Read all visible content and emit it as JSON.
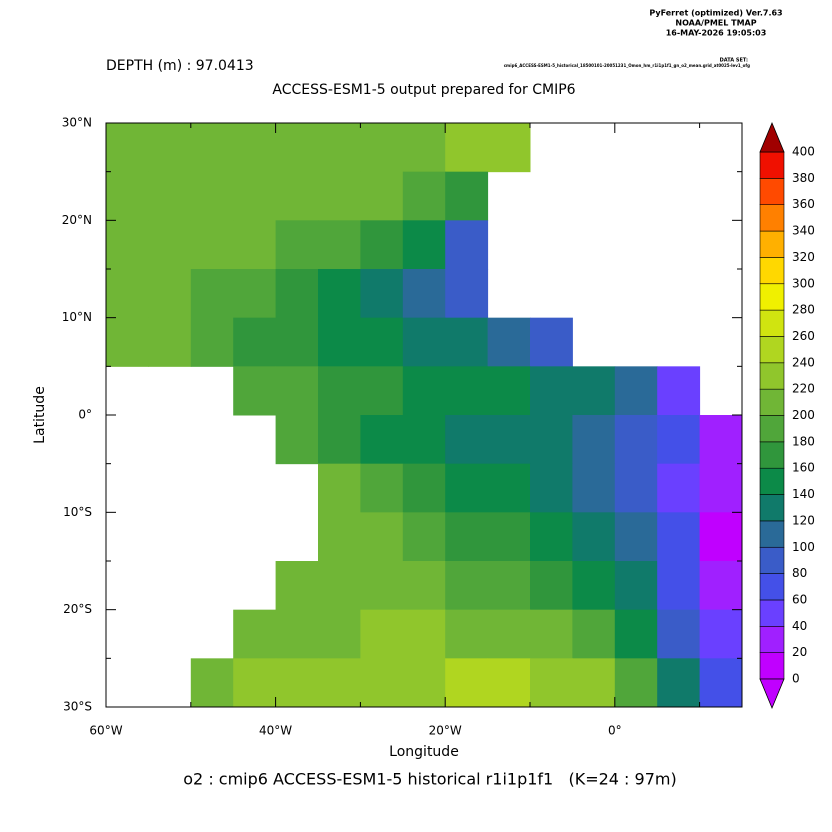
{
  "header": {
    "software": "PyFerret (optimized) Ver.7.63",
    "org": "NOAA/PMEL TMAP",
    "timestamp": "16-MAY-2026 19:05:03"
  },
  "chart_data": {
    "type": "heatmap",
    "title": "ACCESS-ESM1-5 output prepared for CMIP6",
    "subtitle": "DEPTH (m) : 97.0413",
    "dataset_label": "DATA SET:",
    "dataset": "cmip6_ACCESS-ESM1-5_historical_18500101-20051231_Omon_hm_r1i1p1f1_gn_o2_mean.grid_at0025-lev1_ofg",
    "footer": "o2 : cmip6 ACCESS-ESM1-5 historical r1i1p1f1   (K=24 : 97m)",
    "x_label": "Longitude",
    "y_label": "Latitude",
    "xlim": [
      -60,
      15
    ],
    "ylim": [
      -30,
      30
    ],
    "xticks": [
      {
        "value": -60,
        "label": "60°W"
      },
      {
        "value": -40,
        "label": "40°W"
      },
      {
        "value": -20,
        "label": "20°W"
      },
      {
        "value": 0,
        "label": "0°"
      }
    ],
    "yticks": [
      {
        "value": -30,
        "label": "30°S"
      },
      {
        "value": -20,
        "label": "20°S"
      },
      {
        "value": -10,
        "label": "10°S"
      },
      {
        "value": 0,
        "label": "0°"
      },
      {
        "value": 10,
        "label": "10°N"
      },
      {
        "value": 20,
        "label": "20°N"
      },
      {
        "value": 30,
        "label": "30°N"
      }
    ],
    "x": [
      -60,
      -55,
      -50,
      -45,
      -40,
      -35,
      -30,
      -25,
      -20,
      -15,
      -10,
      -5,
      0,
      5,
      10
    ],
    "y": [
      30,
      25,
      20,
      15,
      10,
      5,
      0,
      -5,
      -10,
      -15,
      -20,
      -25
    ],
    "values": [
      [
        200,
        205,
        205,
        210,
        210,
        215,
        215,
        215,
        220,
        225,
        null,
        null,
        null,
        null,
        null
      ],
      [
        205,
        205,
        210,
        210,
        215,
        210,
        205,
        195,
        160,
        null,
        null,
        null,
        null,
        null,
        null
      ],
      [
        205,
        205,
        205,
        200,
        195,
        185,
        170,
        145,
        90,
        null,
        null,
        null,
        null,
        null,
        null
      ],
      [
        210,
        205,
        195,
        185,
        170,
        150,
        130,
        115,
        90,
        null,
        null,
        null,
        null,
        null,
        null
      ],
      [
        200,
        200,
        190,
        175,
        165,
        150,
        140,
        135,
        125,
        110,
        80,
        null,
        null,
        null,
        null
      ],
      [
        null,
        null,
        null,
        195,
        180,
        170,
        160,
        150,
        145,
        140,
        135,
        125,
        100,
        40,
        null
      ],
      [
        null,
        null,
        null,
        null,
        190,
        165,
        150,
        140,
        135,
        130,
        125,
        110,
        90,
        60,
        30
      ],
      [
        null,
        null,
        null,
        null,
        null,
        200,
        180,
        160,
        150,
        140,
        130,
        110,
        85,
        50,
        20
      ],
      [
        null,
        null,
        null,
        null,
        null,
        210,
        200,
        185,
        175,
        160,
        150,
        130,
        100,
        60,
        10
      ],
      [
        null,
        null,
        null,
        null,
        205,
        210,
        210,
        200,
        190,
        180,
        170,
        150,
        120,
        70,
        20
      ],
      [
        null,
        null,
        null,
        210,
        215,
        215,
        220,
        220,
        215,
        210,
        200,
        185,
        150,
        90,
        40
      ],
      [
        null,
        null,
        215,
        220,
        225,
        225,
        230,
        235,
        240,
        240,
        235,
        220,
        190,
        120,
        60
      ]
    ],
    "levels": [
      0,
      20,
      40,
      60,
      80,
      100,
      120,
      140,
      160,
      180,
      200,
      220,
      240,
      260,
      280,
      300,
      320,
      340,
      360,
      380,
      400
    ],
    "colors": [
      "#c000ff",
      "#a020ff",
      "#6a40ff",
      "#4450e8",
      "#3a5cc8",
      "#2a6a98",
      "#107a6a",
      "#0c8a48",
      "#30963c",
      "#50a63a",
      "#70b636",
      "#90c62c",
      "#b0d620",
      "#d0e410",
      "#f0f000",
      "#ffd800",
      "#ffb000",
      "#ff8000",
      "#ff4a00",
      "#f01000"
    ],
    "under_color": "#c000ff",
    "over_color": "#a00000"
  }
}
